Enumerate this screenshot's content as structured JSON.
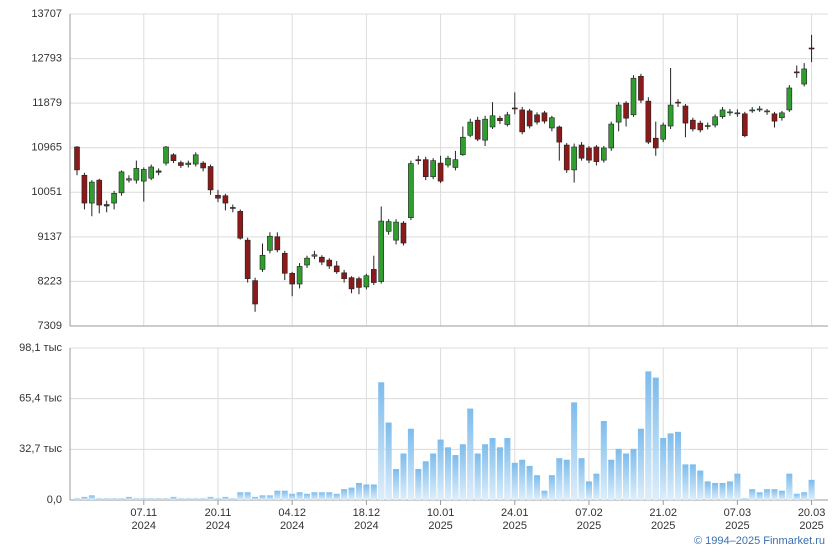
{
  "chart_data": [
    {
      "type": "candlestick",
      "ylim": [
        7309,
        13707
      ],
      "yticks": [
        7309,
        8223,
        9137,
        10051,
        10965,
        11879,
        12793,
        13707
      ],
      "grid": true,
      "up_color": "#2f9e2f",
      "down_color": "#8b1a1a",
      "open": [
        10980,
        10400,
        9830,
        10300,
        9800,
        9830,
        10040,
        10300,
        10300,
        10280,
        10340,
        10490,
        10650,
        10820,
        10660,
        10620,
        10630,
        10650,
        10580,
        9990,
        9980,
        9740,
        9660,
        9070,
        8240,
        8470,
        8860,
        9140,
        8800,
        8390,
        8170,
        8560,
        8740,
        8720,
        8660,
        8540,
        8400,
        8300,
        8280,
        8110,
        8470,
        8220,
        9250,
        9070,
        9420,
        9530,
        10720,
        10720,
        10370,
        10650,
        10610,
        10560,
        10820,
        11220,
        11530,
        11120,
        11390,
        11570,
        11440,
        11780,
        11740,
        11720,
        11640,
        11680,
        11370,
        11390,
        11020,
        10510,
        11020,
        10960,
        10980,
        10710,
        10960,
        11490,
        11880,
        11640,
        12430,
        11920,
        11160,
        11140,
        11410,
        11900,
        11820,
        11530,
        11470,
        11400,
        11430,
        11600,
        11680,
        11660,
        11660,
        11720,
        11740,
        11700,
        11660,
        11580,
        11740,
        12520,
        12270,
        13010
      ],
      "high": [
        11000,
        10450,
        10300,
        10330,
        9880,
        10080,
        10500,
        10400,
        10700,
        10560,
        10620,
        10540,
        11000,
        10850,
        10700,
        10700,
        10870,
        10690,
        10620,
        10100,
        10020,
        9800,
        9700,
        9120,
        8300,
        9000,
        9230,
        9230,
        8850,
        8420,
        8600,
        8750,
        8850,
        8760,
        8700,
        8640,
        8460,
        8330,
        8320,
        8380,
        8750,
        9760,
        9500,
        9500,
        9460,
        10700,
        10800,
        10780,
        10750,
        10800,
        10800,
        10900,
        11400,
        11560,
        11600,
        11620,
        11900,
        11620,
        11700,
        12100,
        11800,
        11760,
        11690,
        11720,
        11620,
        11420,
        11060,
        11050,
        11080,
        11000,
        11020,
        11000,
        11500,
        11900,
        11920,
        12450,
        12480,
        12000,
        11500,
        11480,
        12600,
        11960,
        11860,
        11580,
        11520,
        11480,
        11650,
        11800,
        11760,
        11750,
        11700,
        11800,
        11820,
        11760,
        11700,
        11720,
        12250,
        12650,
        12700,
        13280
      ],
      "low": [
        10400,
        9700,
        9560,
        9620,
        9640,
        9700,
        9980,
        10250,
        10230,
        9860,
        10300,
        10400,
        10600,
        10650,
        10550,
        10560,
        10580,
        10480,
        10000,
        9850,
        9680,
        9640,
        9080,
        8200,
        7600,
        8420,
        8800,
        8820,
        8250,
        7920,
        8080,
        8500,
        8680,
        8560,
        8480,
        8380,
        8200,
        7980,
        7960,
        8060,
        8150,
        8180,
        9180,
        8980,
        8960,
        9480,
        10620,
        10300,
        10320,
        10240,
        10560,
        10500,
        10800,
        11180,
        11100,
        11000,
        11350,
        11450,
        11400,
        11650,
        11240,
        11360,
        11440,
        11460,
        11300,
        10700,
        10450,
        10250,
        10700,
        10650,
        10600,
        10660,
        10900,
        11300,
        11400,
        11600,
        11880,
        11040,
        10800,
        11080,
        11350,
        11800,
        11180,
        11300,
        11280,
        11340,
        11380,
        11560,
        11620,
        11600,
        11180,
        11680,
        11700,
        11640,
        11380,
        11520,
        11700,
        12400,
        12220,
        12720
      ],
      "close": [
        10510,
        9830,
        10260,
        9790,
        9770,
        10030,
        10470,
        10330,
        10540,
        10520,
        10570,
        10460,
        10980,
        10700,
        10600,
        10650,
        10820,
        10550,
        10100,
        9930,
        9830,
        9720,
        9110,
        8280,
        7760,
        8760,
        9150,
        8870,
        8390,
        8170,
        8530,
        8700,
        8770,
        8620,
        8540,
        8420,
        8280,
        8070,
        8100,
        8340,
        8200,
        9460,
        9450,
        9440,
        9010,
        10640,
        10700,
        10370,
        10700,
        10280,
        10750,
        10720,
        11180,
        11490,
        11140,
        11550,
        11620,
        11520,
        11640,
        11760,
        11290,
        11410,
        11490,
        11510,
        11580,
        11080,
        10510,
        10980,
        10750,
        10710,
        10680,
        10960,
        11450,
        11840,
        11570,
        12390,
        11940,
        11080,
        10960,
        11430,
        11840,
        11880,
        11470,
        11350,
        11330,
        11420,
        11600,
        11740,
        11700,
        11680,
        11210,
        11740,
        11760,
        11720,
        11510,
        11680,
        12190,
        12500,
        12580,
        12990
      ]
    },
    {
      "type": "bar",
      "ylim": [
        0,
        98.1
      ],
      "yticks": [
        {
          "value": 0,
          "label": "0,0"
        },
        {
          "value": 32.7,
          "label": "32,7 тыс"
        },
        {
          "value": 65.4,
          "label": "65,4 тыс"
        },
        {
          "value": 98.1,
          "label": "98,1 тыс"
        }
      ],
      "grid": true,
      "color": "#7dbcec",
      "categories": [
        null,
        null,
        null,
        null,
        null,
        null,
        null,
        null,
        null,
        "07.11\n2024",
        null,
        null,
        null,
        null,
        null,
        null,
        null,
        null,
        null,
        "20.11\n2024",
        null,
        null,
        null,
        null,
        null,
        null,
        null,
        null,
        null,
        "04.12\n2024",
        null,
        null,
        null,
        null,
        null,
        null,
        null,
        null,
        null,
        "18.12\n2024",
        null,
        null,
        null,
        null,
        null,
        null,
        null,
        null,
        null,
        "10.01\n2025",
        null,
        null,
        null,
        null,
        null,
        null,
        null,
        null,
        null,
        "24.01\n2025",
        null,
        null,
        null,
        null,
        null,
        null,
        null,
        null,
        null,
        "07.02\n2025",
        null,
        null,
        null,
        null,
        null,
        null,
        null,
        null,
        null,
        "21.02\n2025",
        null,
        null,
        null,
        null,
        null,
        null,
        null,
        null,
        null,
        "07.03\n2025",
        null,
        null,
        null,
        null,
        null,
        null,
        null,
        null,
        null,
        "20.03\n2025"
      ],
      "values": [
        1,
        2,
        3,
        1,
        1,
        1,
        1,
        2,
        1,
        1,
        1,
        1,
        1,
        2,
        1,
        1,
        1,
        1,
        2,
        1,
        2,
        1,
        5,
        5,
        2,
        3,
        3,
        6,
        6,
        4,
        5,
        4,
        5,
        5,
        5,
        4,
        7,
        8,
        11,
        10,
        10,
        76,
        50,
        20,
        30,
        46,
        20,
        25,
        30,
        39,
        34,
        29,
        36,
        59,
        30,
        36,
        40,
        34,
        40,
        24,
        26,
        22,
        16,
        6,
        16,
        27,
        26,
        63,
        27,
        12,
        17,
        51,
        26,
        33,
        30,
        33,
        46,
        83,
        79,
        40,
        43,
        44,
        23,
        23,
        19,
        12,
        11,
        11,
        12,
        17,
        1,
        7,
        5,
        7,
        7,
        6,
        17,
        4,
        5,
        13
      ]
    }
  ],
  "footer": "© 1994–2025 Finmarket.ru"
}
